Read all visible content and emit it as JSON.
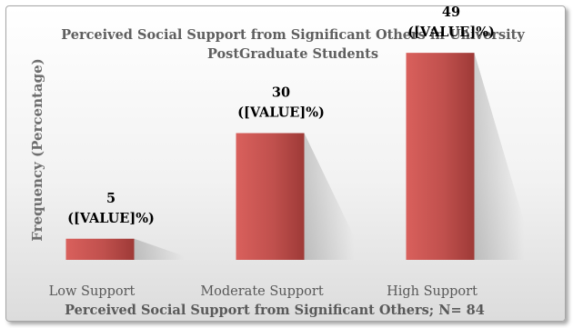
{
  "chart_data": {
    "type": "bar",
    "title_lines": [
      "Perceived Social Support from Significant Others in University",
      "PostGraduate Students"
    ],
    "ylabel": "Frequency (Percentage)",
    "xlabel": "Perceived Social Support from Significant Others; N= 84",
    "categories": [
      "Low Support",
      "Moderate Support",
      "High Support"
    ],
    "values": [
      5,
      30,
      49
    ],
    "data_label_suffix": "([VALUE]%)",
    "ylim": [
      0,
      60
    ],
    "grid": false,
    "legend": "none",
    "bar_color": "#c0504d"
  }
}
